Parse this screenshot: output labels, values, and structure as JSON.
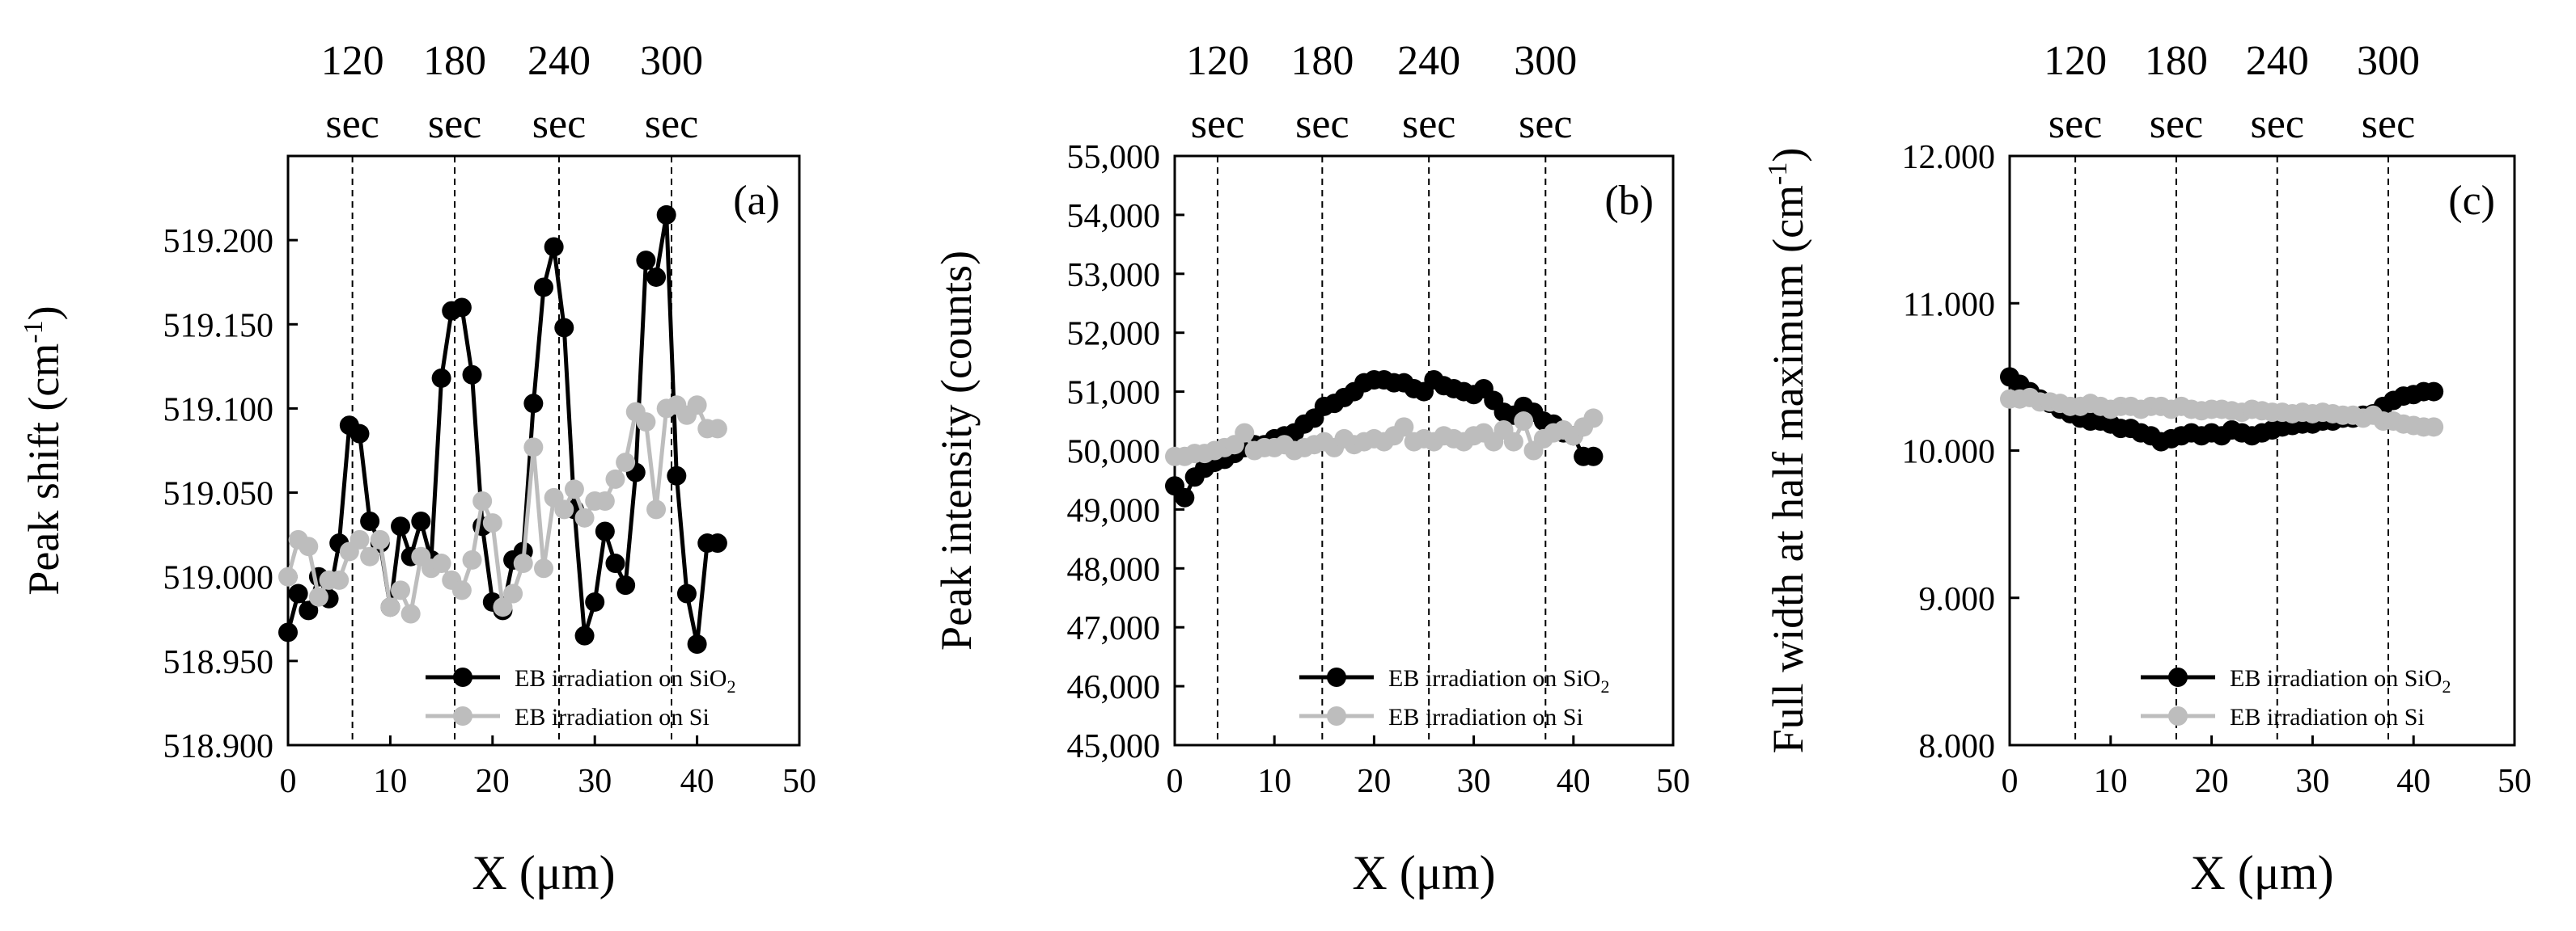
{
  "chart_data": [
    {
      "type": "line",
      "panel_label": "(a)",
      "xlabel": "X (μm)",
      "ylabel": "Peak shift (cm",
      "ylabel_sup": "-1",
      "ylabel_tail": ")",
      "xlim": [
        0,
        50
      ],
      "xticks": [
        0,
        10,
        20,
        30,
        40,
        50
      ],
      "ylim": [
        518.9,
        519.25
      ],
      "yticks": [
        518.9,
        518.95,
        519.0,
        519.05,
        519.1,
        519.15,
        519.2
      ],
      "ytick_labels": [
        "518.900",
        "518.950",
        "519.000",
        "519.050",
        "519.100",
        "519.150",
        "519.200"
      ],
      "time_markers": [
        {
          "x": 6.3,
          "value": "120",
          "unit": "sec"
        },
        {
          "x": 16.3,
          "value": "180",
          "unit": "sec"
        },
        {
          "x": 26.5,
          "value": "240",
          "unit": "sec"
        },
        {
          "x": 37.5,
          "value": "300",
          "unit": "sec"
        }
      ],
      "legend_position": "bottom-right",
      "series": [
        {
          "name": "EB irradiation on SiO",
          "name_sub": "2",
          "color": "#000000",
          "x": [
            0,
            1,
            2,
            3,
            4,
            5,
            6,
            7,
            8,
            9,
            10,
            11,
            12,
            13,
            14,
            15,
            16,
            17,
            18,
            19,
            20,
            21,
            22,
            23,
            24,
            25,
            26,
            27,
            28,
            29,
            30,
            31,
            32,
            33,
            34,
            35,
            36,
            37,
            38,
            39,
            40,
            41,
            42
          ],
          "y": [
            518.967,
            518.99,
            518.98,
            519.0,
            518.987,
            519.02,
            519.09,
            519.085,
            519.033,
            519.02,
            518.982,
            519.03,
            519.012,
            519.033,
            519.01,
            519.118,
            519.158,
            519.16,
            519.12,
            519.03,
            518.985,
            518.98,
            519.01,
            519.015,
            519.103,
            519.172,
            519.196,
            519.148,
            519.04,
            518.965,
            518.985,
            519.027,
            519.008,
            518.995,
            519.062,
            519.188,
            519.178,
            519.215,
            519.06,
            518.99,
            518.96,
            519.02,
            519.02
          ]
        },
        {
          "name": "EB irradiation on Si",
          "color": "#bdbdbd",
          "x": [
            0,
            1,
            2,
            3,
            4,
            5,
            6,
            7,
            8,
            9,
            10,
            11,
            12,
            13,
            14,
            15,
            16,
            17,
            18,
            19,
            20,
            21,
            22,
            23,
            24,
            25,
            26,
            27,
            28,
            29,
            30,
            31,
            32,
            33,
            34,
            35,
            36,
            37,
            38,
            39,
            40,
            41,
            42
          ],
          "y": [
            519.0,
            519.022,
            519.018,
            518.988,
            518.998,
            518.998,
            519.015,
            519.022,
            519.012,
            519.022,
            518.982,
            518.992,
            518.978,
            519.012,
            519.005,
            519.008,
            518.998,
            518.992,
            519.01,
            519.045,
            519.032,
            518.982,
            518.99,
            519.008,
            519.077,
            519.005,
            519.047,
            519.04,
            519.052,
            519.035,
            519.045,
            519.045,
            519.058,
            519.068,
            519.098,
            519.092,
            519.04,
            519.1,
            519.102,
            519.096,
            519.102,
            519.088,
            519.088
          ]
        }
      ]
    },
    {
      "type": "line",
      "panel_label": "(b)",
      "xlabel": "X (μm)",
      "ylabel": "Peak intensity (counts)",
      "xlim": [
        0,
        50
      ],
      "xticks": [
        0,
        10,
        20,
        30,
        40,
        50
      ],
      "ylim": [
        45000,
        55000
      ],
      "yticks": [
        45000,
        46000,
        47000,
        48000,
        49000,
        50000,
        51000,
        52000,
        53000,
        54000,
        55000
      ],
      "ytick_labels": [
        "45,000",
        "46,000",
        "47,000",
        "48,000",
        "49,000",
        "50,000",
        "51,000",
        "52,000",
        "53,000",
        "54,000",
        "55,000"
      ],
      "time_markers": [
        {
          "x": 4.3,
          "value": "120",
          "unit": "sec"
        },
        {
          "x": 14.8,
          "value": "180",
          "unit": "sec"
        },
        {
          "x": 25.5,
          "value": "240",
          "unit": "sec"
        },
        {
          "x": 37.2,
          "value": "300",
          "unit": "sec"
        }
      ],
      "legend_position": "bottom-right",
      "series": [
        {
          "name": "EB irradiation on SiO",
          "name_sub": "2",
          "color": "#000000",
          "x": [
            0,
            1,
            2,
            3,
            4,
            5,
            6,
            7,
            8,
            9,
            10,
            11,
            12,
            13,
            14,
            15,
            16,
            17,
            18,
            19,
            20,
            21,
            22,
            23,
            24,
            25,
            26,
            27,
            28,
            29,
            30,
            31,
            32,
            33,
            34,
            35,
            36,
            37,
            38,
            39,
            40,
            41,
            42
          ],
          "y": [
            49400,
            49200,
            49550,
            49700,
            49800,
            49850,
            49950,
            50050,
            50100,
            50100,
            50200,
            50250,
            50300,
            50450,
            50550,
            50750,
            50800,
            50900,
            51000,
            51150,
            51200,
            51200,
            51150,
            51150,
            51050,
            51000,
            51200,
            51100,
            51050,
            51000,
            50950,
            51050,
            50850,
            50650,
            50600,
            50750,
            50650,
            50500,
            50450,
            50300,
            50250,
            49900,
            49900
          ]
        },
        {
          "name": "EB irradiation on Si",
          "color": "#bdbdbd",
          "x": [
            0,
            1,
            2,
            3,
            4,
            5,
            6,
            7,
            8,
            9,
            10,
            11,
            12,
            13,
            14,
            15,
            16,
            17,
            18,
            19,
            20,
            21,
            22,
            23,
            24,
            25,
            26,
            27,
            28,
            29,
            30,
            31,
            32,
            33,
            34,
            35,
            36,
            37,
            38,
            39,
            40,
            41,
            42
          ],
          "y": [
            49900,
            49900,
            49950,
            49950,
            50000,
            50050,
            50100,
            50300,
            50000,
            50050,
            50050,
            50100,
            50000,
            50050,
            50100,
            50150,
            50050,
            50200,
            50100,
            50150,
            50200,
            50150,
            50250,
            50400,
            50150,
            50200,
            50150,
            50250,
            50200,
            50150,
            50250,
            50300,
            50150,
            50350,
            50150,
            50500,
            50000,
            50200,
            50300,
            50350,
            50250,
            50400,
            50550
          ]
        }
      ]
    },
    {
      "type": "line",
      "panel_label": "(c)",
      "xlabel": "X (μm)",
      "ylabel": "Full width at half maximum (cm",
      "ylabel_sup": "-1",
      "ylabel_tail": ")",
      "xlim": [
        0,
        50
      ],
      "xticks": [
        0,
        10,
        20,
        30,
        40,
        50
      ],
      "ylim": [
        8.0,
        12.0
      ],
      "yticks": [
        8.0,
        9.0,
        10.0,
        11.0,
        12.0
      ],
      "ytick_labels": [
        "8.000",
        "9.000",
        "10.000",
        "11.000",
        "12.000"
      ],
      "time_markers": [
        {
          "x": 6.5,
          "value": "120",
          "unit": "sec"
        },
        {
          "x": 16.5,
          "value": "180",
          "unit": "sec"
        },
        {
          "x": 26.5,
          "value": "240",
          "unit": "sec"
        },
        {
          "x": 37.5,
          "value": "300",
          "unit": "sec"
        }
      ],
      "legend_position": "bottom-right",
      "series": [
        {
          "name": "EB irradiation on SiO",
          "name_sub": "2",
          "color": "#000000",
          "x": [
            0,
            1,
            2,
            3,
            4,
            5,
            6,
            7,
            8,
            9,
            10,
            11,
            12,
            13,
            14,
            15,
            16,
            17,
            18,
            19,
            20,
            21,
            22,
            23,
            24,
            25,
            26,
            27,
            28,
            29,
            30,
            31,
            32,
            33,
            34,
            35,
            36,
            37,
            38,
            39,
            40,
            41,
            42
          ],
          "y": [
            10.5,
            10.45,
            10.4,
            10.35,
            10.32,
            10.28,
            10.25,
            10.22,
            10.2,
            10.2,
            10.18,
            10.15,
            10.15,
            10.12,
            10.1,
            10.06,
            10.08,
            10.1,
            10.12,
            10.1,
            10.12,
            10.1,
            10.14,
            10.12,
            10.1,
            10.12,
            10.14,
            10.16,
            10.17,
            10.18,
            10.18,
            10.2,
            10.2,
            10.22,
            10.22,
            10.24,
            10.25,
            10.3,
            10.34,
            10.37,
            10.38,
            10.4,
            10.4
          ]
        },
        {
          "name": "EB irradiation on Si",
          "color": "#bdbdbd",
          "x": [
            0,
            1,
            2,
            3,
            4,
            5,
            6,
            7,
            8,
            9,
            10,
            11,
            12,
            13,
            14,
            15,
            16,
            17,
            18,
            19,
            20,
            21,
            22,
            23,
            24,
            25,
            26,
            27,
            28,
            29,
            30,
            31,
            32,
            33,
            34,
            35,
            36,
            37,
            38,
            39,
            40,
            41,
            42
          ],
          "y": [
            10.35,
            10.35,
            10.36,
            10.33,
            10.33,
            10.32,
            10.3,
            10.3,
            10.32,
            10.3,
            10.28,
            10.3,
            10.3,
            10.28,
            10.3,
            10.3,
            10.28,
            10.3,
            10.28,
            10.27,
            10.28,
            10.28,
            10.27,
            10.26,
            10.28,
            10.27,
            10.26,
            10.26,
            10.25,
            10.26,
            10.25,
            10.26,
            10.25,
            10.24,
            10.24,
            10.22,
            10.24,
            10.2,
            10.2,
            10.18,
            10.17,
            10.16,
            10.16
          ]
        }
      ]
    }
  ]
}
